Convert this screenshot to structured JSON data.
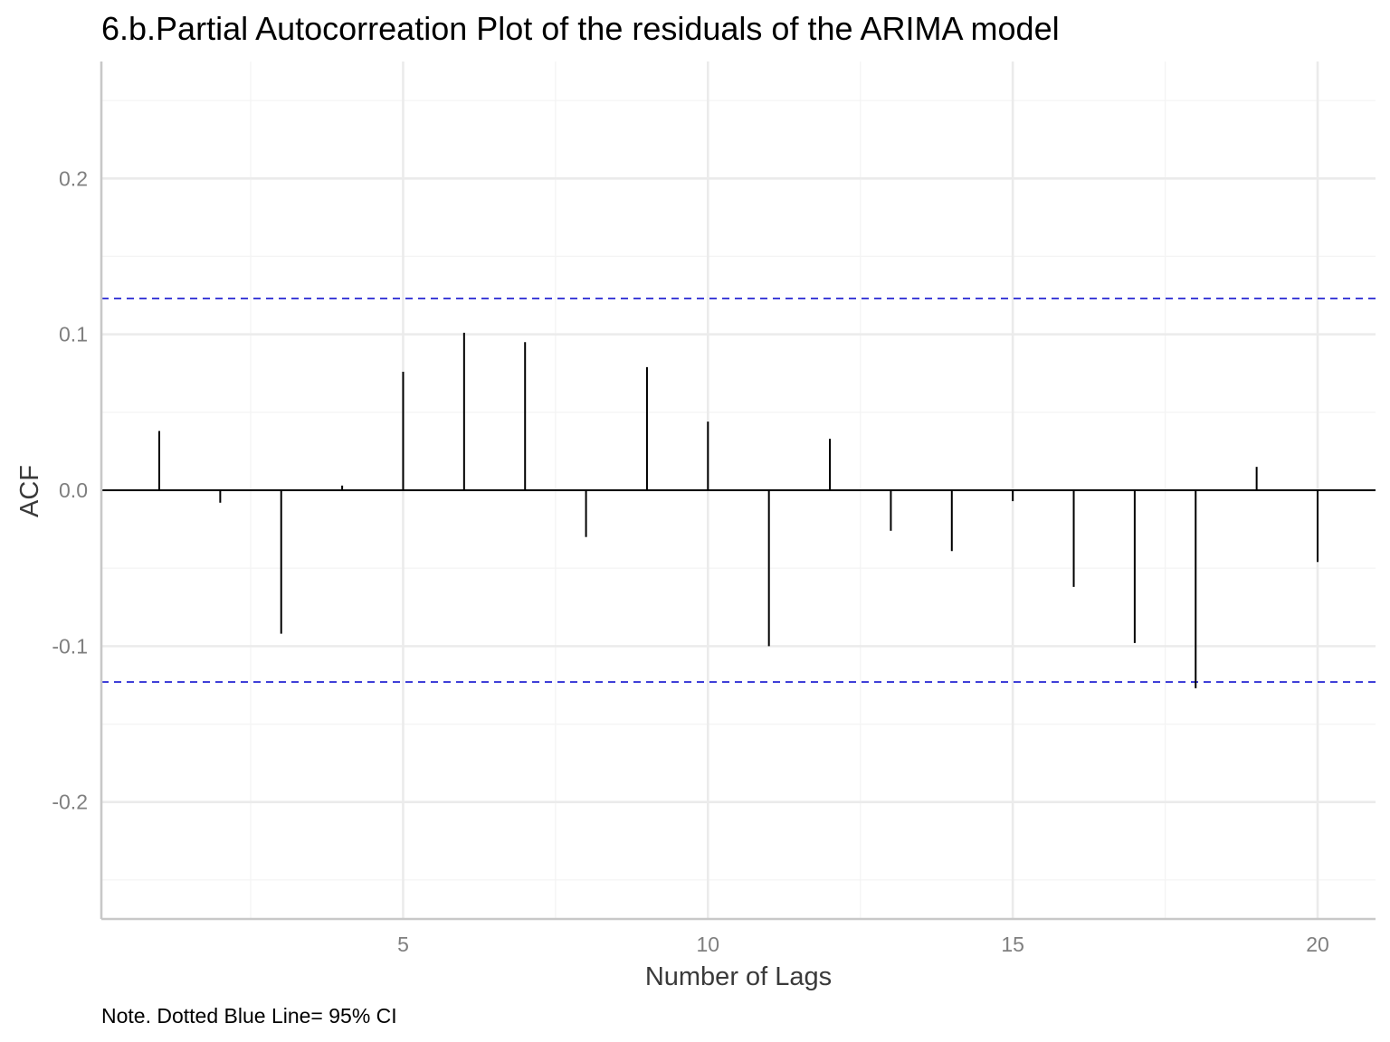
{
  "chart_data": {
    "type": "bar",
    "subtype": "acf-stem",
    "title": "6.b.Partial Autocorreation Plot of the residuals of the ARIMA model",
    "xlabel": "Number of Lags",
    "ylabel": "ACF",
    "caption": "Note. Dotted Blue Line= 95% CI",
    "xlim": [
      0.05,
      20.95
    ],
    "ylim": [
      -0.275,
      0.275
    ],
    "x_ticks": [
      5,
      10,
      15,
      20
    ],
    "x_tick_labels": [
      "5",
      "10",
      "15",
      "20"
    ],
    "y_ticks": [
      -0.2,
      -0.1,
      0.0,
      0.1,
      0.2
    ],
    "y_tick_labels": [
      "-0.2",
      "-0.1",
      "0.0",
      "0.1",
      "0.2"
    ],
    "grid": true,
    "lags": [
      1,
      2,
      3,
      4,
      5,
      6,
      7,
      8,
      9,
      10,
      11,
      12,
      13,
      14,
      15,
      16,
      17,
      18,
      19,
      20
    ],
    "values": [
      0.038,
      -0.008,
      -0.092,
      0.003,
      0.076,
      0.101,
      0.095,
      -0.03,
      0.079,
      0.044,
      -0.1,
      0.033,
      -0.026,
      -0.039,
      -0.007,
      -0.062,
      -0.098,
      -0.127,
      0.015,
      -0.046
    ],
    "confidence_interval": {
      "upper": 0.123,
      "lower": -0.123,
      "color": "#0000cc",
      "style": "dashed"
    },
    "colors": {
      "stem": "#000000",
      "baseline": "#000000",
      "grid_major": "#ebebeb",
      "grid_minor": "#f4f4f4",
      "axis": "#c8c8c8"
    }
  }
}
